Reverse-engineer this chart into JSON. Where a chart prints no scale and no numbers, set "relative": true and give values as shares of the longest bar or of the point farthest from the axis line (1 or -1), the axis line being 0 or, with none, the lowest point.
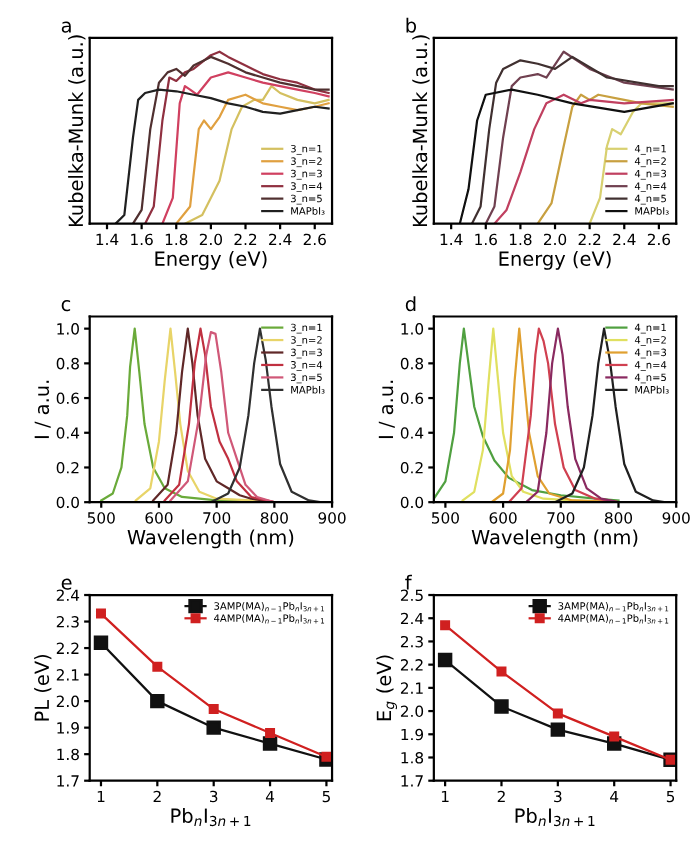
{
  "chart_data": [
    {
      "type": "line",
      "title": "a",
      "xlabel": "Energy (eV)",
      "ylabel": "Kubelka-Munk (a.u.)",
      "relative": true,
      "xlim": [
        1.3,
        2.7
      ],
      "xticks": [
        1.4,
        1.6,
        1.8,
        {
          "value": 2,
          "label": "2.0"
        },
        2.2,
        2.4,
        2.6
      ],
      "legend": "bottom right",
      "series": [
        {
          "name": "3_n=1",
          "color": "#d4c060",
          "x": [
            1.85,
            1.95,
            2.05,
            2.12,
            2.18,
            2.25,
            2.3,
            2.35,
            2.4,
            2.5,
            2.6,
            2.68
          ],
          "values": [
            0,
            0.05,
            0.25,
            0.55,
            0.68,
            0.72,
            0.72,
            0.8,
            0.76,
            0.72,
            0.7,
            0.72
          ]
        },
        {
          "name": "3_n=2",
          "color": "#e0a040",
          "x": [
            1.8,
            1.88,
            1.93,
            1.96,
            2.0,
            2.05,
            2.1,
            2.2,
            2.3,
            2.4,
            2.5,
            2.6,
            2.68
          ],
          "values": [
            0,
            0.1,
            0.55,
            0.6,
            0.55,
            0.62,
            0.72,
            0.75,
            0.7,
            0.68,
            0.66,
            0.68,
            0.7
          ]
        },
        {
          "name": "3_n=3",
          "color": "#d04060",
          "x": [
            1.72,
            1.78,
            1.82,
            1.85,
            1.88,
            1.92,
            2.0,
            2.1,
            2.2,
            2.3,
            2.4,
            2.5,
            2.6,
            2.68
          ],
          "values": [
            0,
            0.15,
            0.7,
            0.8,
            0.78,
            0.75,
            0.85,
            0.88,
            0.85,
            0.82,
            0.8,
            0.78,
            0.76,
            0.74
          ]
        },
        {
          "name": "3_n=4",
          "color": "#903040",
          "x": [
            1.62,
            1.67,
            1.72,
            1.76,
            1.8,
            1.85,
            1.9,
            2.0,
            2.05,
            2.1,
            2.2,
            2.3,
            2.4,
            2.5,
            2.6,
            2.68
          ],
          "values": [
            0,
            0.1,
            0.6,
            0.85,
            0.83,
            0.88,
            0.9,
            0.98,
            1.0,
            0.97,
            0.92,
            0.87,
            0.84,
            0.82,
            0.78,
            0.76
          ]
        },
        {
          "name": "3_n=5",
          "color": "#503030",
          "x": [
            1.55,
            1.6,
            1.65,
            1.7,
            1.75,
            1.8,
            1.85,
            1.9,
            2.0,
            2.1,
            2.2,
            2.3,
            2.4,
            2.5,
            2.6,
            2.68
          ],
          "values": [
            0,
            0.08,
            0.55,
            0.82,
            0.88,
            0.9,
            0.86,
            0.92,
            0.97,
            0.93,
            0.88,
            0.85,
            0.82,
            0.8,
            0.78,
            0.78
          ]
        },
        {
          "name": "MAPbI₃",
          "color": "#202020",
          "x": [
            1.45,
            1.5,
            1.55,
            1.58,
            1.62,
            1.7,
            1.8,
            1.9,
            2.0,
            2.1,
            2.2,
            2.3,
            2.4,
            2.5,
            2.6,
            2.68
          ],
          "values": [
            0,
            0.05,
            0.5,
            0.72,
            0.76,
            0.78,
            0.77,
            0.75,
            0.73,
            0.7,
            0.68,
            0.65,
            0.64,
            0.66,
            0.68,
            0.67
          ]
        }
      ]
    },
    {
      "type": "line",
      "title": "b",
      "xlabel": "Energy (eV)",
      "ylabel": "Kubelka-Munk (a.u.)",
      "relative": true,
      "xlim": [
        1.3,
        2.7
      ],
      "xticks": [
        1.4,
        1.6,
        1.8,
        {
          "value": 2,
          "label": "2.0"
        },
        2.2,
        2.4,
        2.6
      ],
      "legend": "bottom right",
      "series": [
        {
          "name": "4_n=1",
          "color": "#d8d070",
          "x": [
            2.2,
            2.26,
            2.3,
            2.33,
            2.38,
            2.45,
            2.5,
            2.6,
            2.68
          ],
          "values": [
            0,
            0.15,
            0.45,
            0.55,
            0.52,
            0.65,
            0.7,
            0.7,
            0.7
          ]
        },
        {
          "name": "4_n=2",
          "color": "#c8a040",
          "x": [
            1.9,
            1.98,
            2.05,
            2.1,
            2.15,
            2.2,
            2.25,
            2.4,
            2.5,
            2.68
          ],
          "values": [
            0,
            0.12,
            0.45,
            0.68,
            0.75,
            0.72,
            0.75,
            0.72,
            0.7,
            0.68
          ]
        },
        {
          "name": "4_n=3",
          "color": "#c04060",
          "x": [
            1.65,
            1.72,
            1.8,
            1.88,
            1.95,
            2.05,
            2.15,
            2.2,
            2.4,
            2.68
          ],
          "values": [
            0,
            0.08,
            0.3,
            0.55,
            0.7,
            0.75,
            0.7,
            0.72,
            0.7,
            0.72
          ]
        },
        {
          "name": "4_n=4",
          "color": "#704050",
          "x": [
            1.6,
            1.65,
            1.7,
            1.75,
            1.8,
            1.9,
            1.95,
            2.05,
            2.2,
            2.4,
            2.68
          ],
          "values": [
            0,
            0.1,
            0.5,
            0.8,
            0.85,
            0.87,
            0.85,
            1.0,
            0.9,
            0.82,
            0.78
          ]
        },
        {
          "name": "4_n=5",
          "color": "#403030",
          "x": [
            1.52,
            1.57,
            1.62,
            1.66,
            1.7,
            1.8,
            1.9,
            2.0,
            2.1,
            2.3,
            2.6,
            2.68
          ],
          "values": [
            0,
            0.1,
            0.55,
            0.82,
            0.9,
            0.95,
            0.93,
            0.9,
            0.97,
            0.85,
            0.8,
            0.8
          ]
        },
        {
          "name": "MAPbI₃",
          "color": "#101010",
          "x": [
            1.45,
            1.5,
            1.55,
            1.6,
            1.75,
            1.9,
            2.1,
            2.4,
            2.68
          ],
          "values": [
            0,
            0.2,
            0.6,
            0.75,
            0.78,
            0.75,
            0.7,
            0.65,
            0.7
          ]
        }
      ]
    },
    {
      "type": "line",
      "title": "c",
      "xlabel": "Wavelength (nm)",
      "ylabel": "I / a.u.",
      "xlim": [
        480,
        900
      ],
      "xticks": [
        500,
        600,
        700,
        800,
        900
      ],
      "ylim": [
        0,
        1.07
      ],
      "yticks": [
        {
          "value": 0,
          "label": "0.0"
        },
        0.2,
        0.4,
        0.6,
        0.8,
        {
          "value": 1,
          "label": "1.0"
        }
      ],
      "legend": "top right",
      "series": [
        {
          "name": "3_n=1",
          "color": "#6aaa3a",
          "x": [
            500,
            520,
            535,
            545,
            550,
            558,
            566,
            575,
            590,
            610,
            640,
            700,
            800
          ],
          "values": [
            0.01,
            0.05,
            0.2,
            0.5,
            0.78,
            1.0,
            0.75,
            0.45,
            0.2,
            0.08,
            0.03,
            0.01,
            0.0
          ]
        },
        {
          "name": "3_n=2",
          "color": "#e8d468",
          "x": [
            560,
            585,
            600,
            610,
            620,
            628,
            637,
            650,
            670,
            700,
            760,
            800
          ],
          "values": [
            0.01,
            0.08,
            0.35,
            0.7,
            1.0,
            0.75,
            0.45,
            0.18,
            0.06,
            0.02,
            0.01,
            0.0
          ]
        },
        {
          "name": "3_n=3",
          "color": "#602828",
          "x": [
            590,
            615,
            630,
            640,
            650,
            658,
            667,
            680,
            700,
            720,
            740,
            760,
            800
          ],
          "values": [
            0.01,
            0.1,
            0.4,
            0.75,
            1.0,
            0.8,
            0.5,
            0.25,
            0.12,
            0.08,
            0.04,
            0.02,
            0.0
          ]
        },
        {
          "name": "3_n=4",
          "color": "#c03040",
          "x": [
            610,
            635,
            652,
            662,
            672,
            680,
            690,
            705,
            720,
            735,
            760,
            800
          ],
          "values": [
            0.01,
            0.1,
            0.45,
            0.8,
            1.0,
            0.85,
            0.55,
            0.35,
            0.25,
            0.12,
            0.03,
            0.0
          ]
        },
        {
          "name": "3_n=5",
          "color": "#d05878",
          "x": [
            620,
            650,
            670,
            682,
            690,
            698,
            708,
            720,
            735,
            750,
            770,
            800
          ],
          "values": [
            0.01,
            0.12,
            0.5,
            0.85,
            0.98,
            0.97,
            0.75,
            0.4,
            0.25,
            0.1,
            0.03,
            0.0
          ]
        },
        {
          "name": "MAPbI₃",
          "color": "#303030",
          "x": [
            690,
            720,
            740,
            755,
            765,
            775,
            785,
            795,
            810,
            830,
            860,
            880
          ],
          "values": [
            0.0,
            0.05,
            0.2,
            0.5,
            0.8,
            1.0,
            0.82,
            0.55,
            0.22,
            0.06,
            0.01,
            0.0
          ]
        }
      ]
    },
    {
      "type": "line",
      "title": "d",
      "xlabel": "Wavelength (nm)",
      "ylabel": "I / a.u.",
      "xlim": [
        480,
        900
      ],
      "xticks": [
        500,
        600,
        700,
        800,
        900
      ],
      "ylim": [
        0,
        1.07
      ],
      "yticks": [
        {
          "value": 0,
          "label": "0.0"
        },
        0.2,
        0.4,
        0.6,
        0.8,
        {
          "value": 1,
          "label": "1.0"
        }
      ],
      "legend": "top right",
      "series": [
        {
          "name": "4_n=1",
          "color": "#50a040",
          "x": [
            480,
            500,
            515,
            525,
            532,
            540,
            550,
            565,
            585,
            610,
            650,
            700,
            760,
            800
          ],
          "values": [
            0.02,
            0.12,
            0.4,
            0.8,
            1.0,
            0.8,
            0.55,
            0.38,
            0.24,
            0.14,
            0.07,
            0.04,
            0.02,
            0.01
          ]
        },
        {
          "name": "4_n=2",
          "color": "#e0e060",
          "x": [
            530,
            550,
            565,
            575,
            583,
            590,
            600,
            615,
            635,
            670,
            720,
            800
          ],
          "values": [
            0.01,
            0.06,
            0.3,
            0.7,
            1.0,
            0.75,
            0.4,
            0.15,
            0.06,
            0.02,
            0.01,
            0.0
          ]
        },
        {
          "name": "4_n=3",
          "color": "#e0a030",
          "x": [
            580,
            600,
            612,
            620,
            628,
            635,
            645,
            660,
            680,
            720,
            800
          ],
          "values": [
            0.0,
            0.05,
            0.3,
            0.7,
            1.0,
            0.75,
            0.4,
            0.15,
            0.05,
            0.01,
            0.0
          ]
        },
        {
          "name": "4_n=4",
          "color": "#d04050",
          "x": [
            610,
            632,
            648,
            656,
            662,
            670,
            678,
            690,
            705,
            725,
            760,
            800
          ],
          "values": [
            0.0,
            0.08,
            0.5,
            0.85,
            1.0,
            0.93,
            0.8,
            0.45,
            0.2,
            0.07,
            0.02,
            0.0
          ]
        },
        {
          "name": "4_n=5",
          "color": "#8a2a60",
          "x": [
            640,
            660,
            675,
            685,
            695,
            703,
            712,
            725,
            745,
            770,
            800
          ],
          "values": [
            0.0,
            0.06,
            0.4,
            0.8,
            1.0,
            0.85,
            0.55,
            0.25,
            0.08,
            0.02,
            0.0
          ]
        },
        {
          "name": "MAPbI₃",
          "color": "#202020",
          "x": [
            690,
            720,
            740,
            755,
            765,
            775,
            785,
            795,
            810,
            830,
            860,
            880
          ],
          "values": [
            0.0,
            0.05,
            0.2,
            0.5,
            0.8,
            1.0,
            0.82,
            0.55,
            0.22,
            0.06,
            0.01,
            0.0
          ]
        }
      ]
    },
    {
      "type": "line",
      "title": "e",
      "xlabel": "Pb$_{n}$I$_{3n+1}$",
      "ylabel": "PL (eV)",
      "xlim": [
        0.8,
        5.1
      ],
      "xticks": [
        1,
        2,
        3,
        4,
        5
      ],
      "ylim": [
        1.7,
        2.4
      ],
      "yticks": [
        1.7,
        1.8,
        1.9,
        {
          "value": 2,
          "label": "2.0"
        },
        2.1,
        2.2,
        2.3,
        2.4
      ],
      "legend": "top right",
      "marker": "square",
      "series": [
        {
          "name": "3AMP(MA)$_{n−1}$Pb$_{n}$I$_{3n+1}$",
          "color": "#111111",
          "x": [
            1,
            2,
            3,
            4,
            5
          ],
          "values": [
            2.22,
            2.0,
            1.9,
            1.84,
            1.78
          ]
        },
        {
          "name": "4AMP(MA)$_{n−1}$Pb$_{n}$I$_{3n+1}$",
          "color": "#d02020",
          "x": [
            1,
            2,
            3,
            4,
            5
          ],
          "values": [
            2.33,
            2.13,
            1.97,
            1.88,
            1.79
          ]
        }
      ]
    },
    {
      "type": "line",
      "title": "f",
      "xlabel": "Pb$_{n}$I$_{3n+1}$",
      "ylabel": "E$_{g}$ (eV)",
      "xlim": [
        0.8,
        5.1
      ],
      "xticks": [
        1,
        2,
        3,
        4,
        5
      ],
      "ylim": [
        1.7,
        2.5
      ],
      "yticks": [
        1.7,
        1.8,
        1.9,
        {
          "value": 2,
          "label": "2.0"
        },
        2.1,
        2.2,
        2.3,
        2.4,
        2.5
      ],
      "legend": "top right",
      "marker": "square",
      "series": [
        {
          "name": "3AMP(MA)$_{n−1}$Pb$_{n}$I$_{3n+1}$",
          "color": "#111111",
          "x": [
            1,
            2,
            3,
            4,
            5
          ],
          "values": [
            2.22,
            2.02,
            1.92,
            1.86,
            1.79
          ]
        },
        {
          "name": "4AMP(MA)$_{n−1}$Pb$_{n}$I$_{3n+1}$",
          "color": "#d02020",
          "x": [
            1,
            2,
            3,
            4,
            5
          ],
          "values": [
            2.37,
            2.17,
            1.99,
            1.89,
            1.79
          ]
        }
      ]
    }
  ]
}
